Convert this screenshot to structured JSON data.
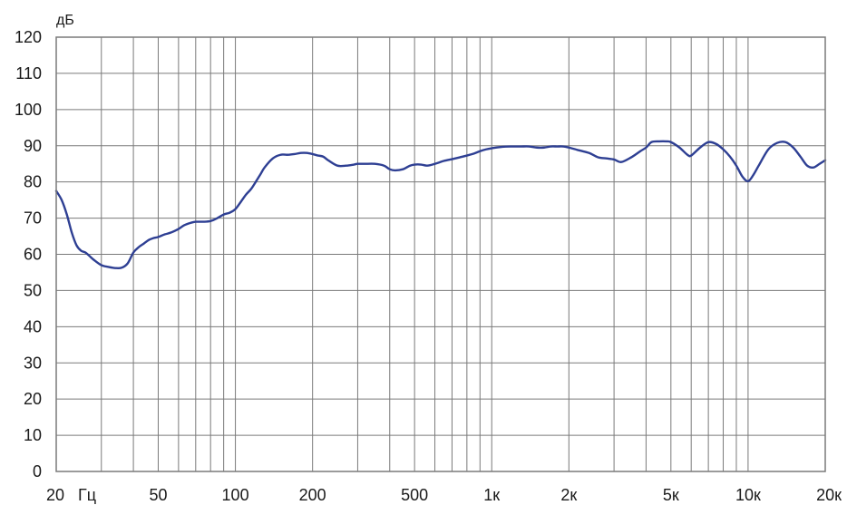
{
  "chart_data": {
    "type": "line",
    "title": "",
    "ylabel": "дБ",
    "xlabel": "",
    "x_unit_label": "Гц",
    "x_scale": "log",
    "xlim": [
      20,
      20000
    ],
    "ylim": [
      0,
      120
    ],
    "grid": true,
    "colors": {
      "line": "#2e3f93",
      "grid": "#7a7a7a",
      "frame": "#7a7a7a"
    },
    "y_ticks": [
      0,
      10,
      20,
      30,
      40,
      50,
      60,
      70,
      80,
      90,
      100,
      110,
      120
    ],
    "x_ticks": [
      {
        "value": 20,
        "label": "20"
      },
      {
        "value": 50,
        "label": "50"
      },
      {
        "value": 100,
        "label": "100"
      },
      {
        "value": 200,
        "label": "200"
      },
      {
        "value": 500,
        "label": "500"
      },
      {
        "value": 1000,
        "label": "1к"
      },
      {
        "value": 2000,
        "label": "2к"
      },
      {
        "value": 5000,
        "label": "5к"
      },
      {
        "value": 10000,
        "label": "10к"
      },
      {
        "value": 20000,
        "label": "20к"
      }
    ],
    "x_gridlines": [
      20,
      30,
      40,
      50,
      60,
      70,
      80,
      90,
      100,
      200,
      300,
      400,
      500,
      600,
      700,
      800,
      900,
      1000,
      2000,
      3000,
      4000,
      5000,
      6000,
      7000,
      8000,
      9000,
      10000,
      20000
    ],
    "series": [
      {
        "x": [
          20,
          21,
          22,
          23,
          24,
          25,
          26,
          27,
          28,
          30,
          32,
          34,
          36,
          38,
          40,
          42,
          44,
          46,
          48,
          50,
          53,
          56,
          60,
          63,
          67,
          70,
          75,
          80,
          85,
          90,
          95,
          100,
          105,
          110,
          115,
          120,
          125,
          130,
          140,
          150,
          160,
          170,
          180,
          190,
          200,
          210,
          220,
          230,
          250,
          270,
          290,
          300,
          320,
          350,
          380,
          400,
          420,
          450,
          480,
          500,
          530,
          560,
          600,
          650,
          700,
          750,
          800,
          850,
          900,
          950,
          1000,
          1100,
          1200,
          1300,
          1400,
          1500,
          1600,
          1700,
          1800,
          1900,
          2000,
          2200,
          2400,
          2600,
          2800,
          3000,
          3200,
          3500,
          3800,
          4000,
          4200,
          4500,
          4800,
          5000,
          5400,
          5800,
          6000,
          6500,
          7000,
          7500,
          8000,
          8500,
          9000,
          9500,
          10000,
          10500,
          11000,
          12000,
          13000,
          14000,
          15000,
          16000,
          17000,
          18000,
          19000,
          20000
        ],
        "y": [
          77.5,
          75,
          71,
          66,
          62.5,
          61,
          60.5,
          59.5,
          58.5,
          57,
          56.5,
          56.2,
          56.3,
          57.5,
          60.5,
          62,
          63,
          64,
          64.5,
          64.8,
          65.5,
          66,
          67,
          68,
          68.7,
          69,
          69,
          69.2,
          70,
          71,
          71.5,
          72.5,
          74.5,
          76.5,
          78,
          80,
          82,
          84,
          86.5,
          87.5,
          87.5,
          87.7,
          88,
          88,
          87.7,
          87.3,
          87,
          86,
          84.5,
          84.5,
          84.8,
          85,
          85,
          85,
          84.5,
          83.5,
          83.2,
          83.5,
          84.5,
          84.8,
          84.8,
          84.5,
          85,
          85.8,
          86.3,
          86.8,
          87.3,
          87.8,
          88.5,
          89,
          89.3,
          89.7,
          89.8,
          89.8,
          89.8,
          89.5,
          89.5,
          89.8,
          89.8,
          89.8,
          89.5,
          88.7,
          88,
          86.8,
          86.5,
          86.2,
          85.5,
          86.8,
          88.5,
          89.5,
          91,
          91.2,
          91.2,
          91,
          89.5,
          87.5,
          87.3,
          89.5,
          91,
          90.5,
          89,
          87,
          84.5,
          81.5,
          80.2,
          82,
          84.5,
          89,
          90.8,
          91,
          89.5,
          87,
          84.5,
          84,
          85,
          86
        ]
      }
    ]
  }
}
